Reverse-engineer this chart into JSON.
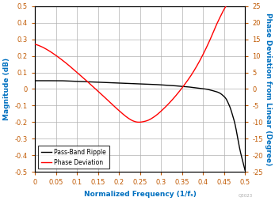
{
  "xlabel": "Normalized Frequency (1/fₛ)",
  "ylabel_left": "Magnitude (dB)",
  "ylabel_right": "Phase Deviation from Linear (Degree)",
  "xlim": [
    0,
    0.5
  ],
  "ylim_left": [
    -0.5,
    0.5
  ],
  "ylim_right": [
    -25,
    25
  ],
  "yticks_left": [
    -0.5,
    -0.4,
    -0.3,
    -0.2,
    -0.1,
    0.0,
    0.1,
    0.2,
    0.3,
    0.4,
    0.5
  ],
  "yticks_right": [
    -25,
    -20,
    -15,
    -10,
    -5,
    0,
    5,
    10,
    15,
    20,
    25
  ],
  "xticks": [
    0,
    0.05,
    0.1,
    0.15,
    0.2,
    0.25,
    0.3,
    0.35,
    0.4,
    0.45,
    0.5
  ],
  "line_black_color": "#000000",
  "line_red_color": "#ff0000",
  "legend_labels": [
    "Pass-Band Ripple",
    "Phase Deviation"
  ],
  "background_color": "#ffffff",
  "grid_color": "#b0b0b0",
  "label_color": "#0070c0",
  "tick_color": "#c05800",
  "watermark": "Q3023",
  "black_x": [
    0.0,
    0.02,
    0.04,
    0.06,
    0.08,
    0.1,
    0.12,
    0.14,
    0.16,
    0.18,
    0.2,
    0.22,
    0.24,
    0.26,
    0.28,
    0.3,
    0.32,
    0.34,
    0.36,
    0.38,
    0.4,
    0.41,
    0.42,
    0.43,
    0.44,
    0.45,
    0.455,
    0.46,
    0.465,
    0.47,
    0.475,
    0.48,
    0.485,
    0.49,
    0.495,
    0.5
  ],
  "black_y": [
    0.05,
    0.05,
    0.05,
    0.05,
    0.048,
    0.046,
    0.044,
    0.042,
    0.04,
    0.038,
    0.036,
    0.034,
    0.032,
    0.03,
    0.028,
    0.025,
    0.022,
    0.018,
    0.014,
    0.008,
    0.002,
    -0.002,
    -0.008,
    -0.015,
    -0.025,
    -0.045,
    -0.06,
    -0.085,
    -0.115,
    -0.155,
    -0.2,
    -0.26,
    -0.33,
    -0.39,
    -0.44,
    -0.49
  ],
  "red_x": [
    0.0,
    0.02,
    0.04,
    0.06,
    0.08,
    0.1,
    0.12,
    0.14,
    0.16,
    0.18,
    0.2,
    0.21,
    0.22,
    0.23,
    0.24,
    0.25,
    0.26,
    0.27,
    0.28,
    0.29,
    0.3,
    0.31,
    0.32,
    0.33,
    0.34,
    0.35,
    0.36,
    0.37,
    0.38,
    0.39,
    0.4,
    0.41,
    0.42,
    0.43,
    0.44,
    0.45,
    0.455
  ],
  "red_y": [
    13.5,
    12.5,
    11.0,
    9.2,
    7.2,
    5.0,
    2.8,
    0.5,
    -1.8,
    -4.2,
    -6.5,
    -7.6,
    -8.6,
    -9.4,
    -9.9,
    -10.0,
    -9.8,
    -9.4,
    -8.7,
    -7.8,
    -6.7,
    -5.5,
    -4.2,
    -2.8,
    -1.3,
    0.3,
    2.0,
    3.8,
    5.8,
    8.0,
    10.4,
    13.0,
    15.8,
    18.8,
    21.5,
    24.0,
    25.0
  ]
}
